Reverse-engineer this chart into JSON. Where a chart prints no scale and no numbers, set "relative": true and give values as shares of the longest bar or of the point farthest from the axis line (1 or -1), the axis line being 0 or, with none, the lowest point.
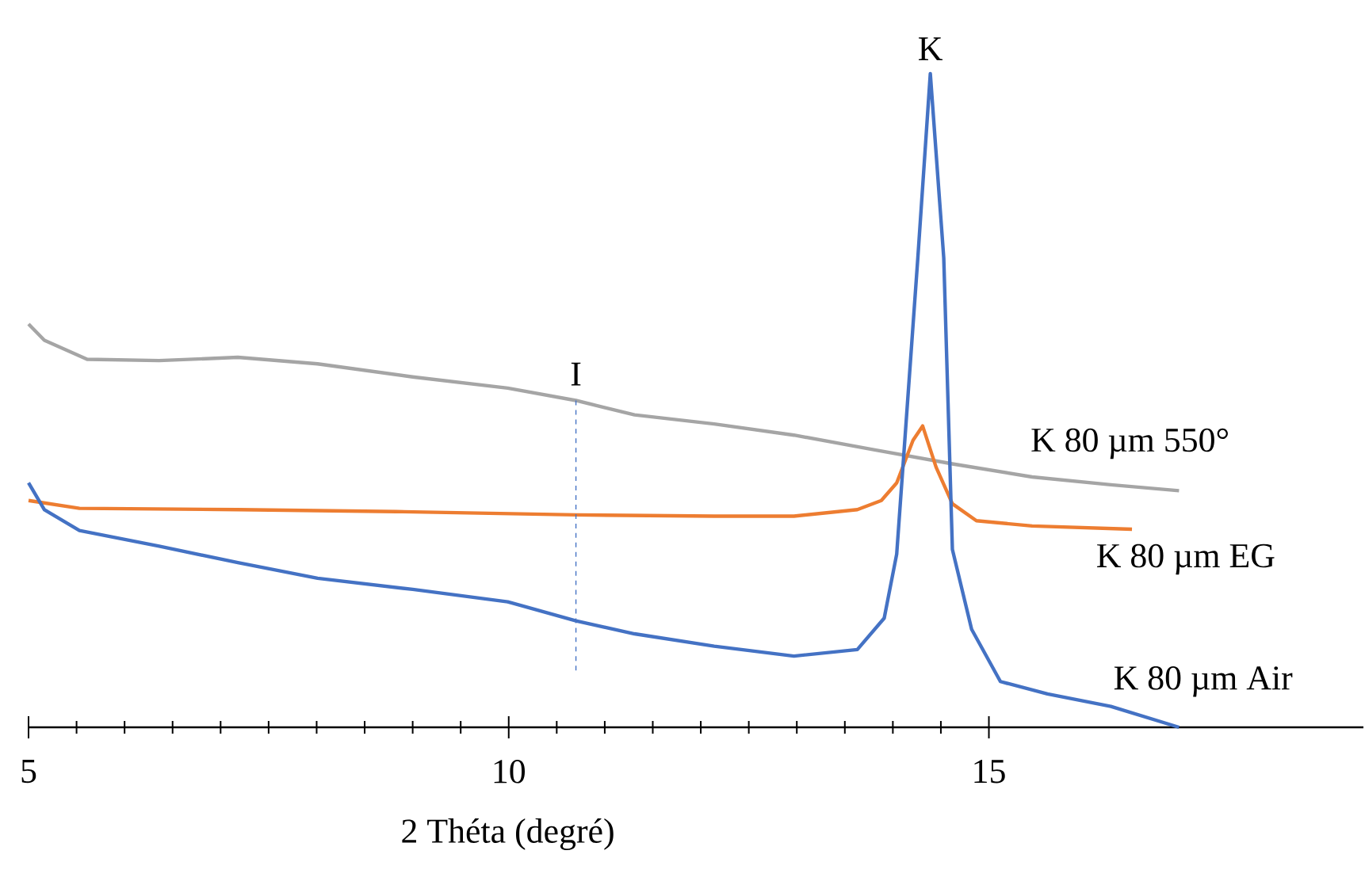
{
  "chart_data": {
    "type": "line",
    "relative": true,
    "xlabel": "2 Théta (degré)",
    "xlim": [
      5,
      18.9
    ],
    "xticks": [
      5,
      10,
      15
    ],
    "legend": false,
    "marker": "none",
    "line_style": "solid",
    "series": [
      {
        "name": "K 80 µm 550°",
        "color": "#a5a5a5",
        "x": [
          5,
          5.165,
          5.61,
          6.36,
          7.18,
          8.01,
          9.0,
          9.99,
          10.7,
          11.31,
          12.14,
          12.97,
          13.79,
          14.62,
          15.45,
          16.27,
          16.98
        ],
        "values": [
          0.617,
          0.592,
          0.563,
          0.561,
          0.566,
          0.556,
          0.536,
          0.519,
          0.5,
          0.478,
          0.464,
          0.447,
          0.425,
          0.403,
          0.383,
          0.371,
          0.362
        ]
      },
      {
        "name": "K 80 µm EG",
        "color": "#ed7d31",
        "x": [
          5,
          5.53,
          7.18,
          8.83,
          10.7,
          12.14,
          12.97,
          13.63,
          13.88,
          14.04,
          14.21,
          14.31,
          14.45,
          14.62,
          14.87,
          15.45,
          16.49
        ],
        "values": [
          0.347,
          0.335,
          0.333,
          0.33,
          0.325,
          0.323,
          0.323,
          0.333,
          0.347,
          0.374,
          0.439,
          0.461,
          0.398,
          0.342,
          0.316,
          0.308,
          0.303
        ]
      },
      {
        "name": "K 80 µm Air",
        "color": "#4472c4",
        "x": [
          5,
          5.165,
          5.53,
          6.36,
          7.18,
          8.01,
          9.0,
          9.99,
          10.7,
          11.31,
          12.14,
          12.97,
          13.63,
          13.91,
          14.04,
          14.26,
          14.39,
          14.53,
          14.62,
          14.82,
          15.12,
          15.61,
          16.27,
          16.98
        ],
        "values": [
          0.374,
          0.333,
          0.301,
          0.277,
          0.252,
          0.228,
          0.211,
          0.192,
          0.163,
          0.143,
          0.124,
          0.109,
          0.119,
          0.167,
          0.265,
          0.718,
          1,
          0.718,
          0.272,
          0.15,
          0.07,
          0.051,
          0.032,
          0
        ]
      }
    ],
    "ref_lines": [
      {
        "axis": "x",
        "value": 10.7,
        "label": "I",
        "color": "#4472c4",
        "line_style": "dashed"
      }
    ],
    "annotations": [
      {
        "text": "K",
        "x": 14.39,
        "y": 1
      }
    ]
  }
}
